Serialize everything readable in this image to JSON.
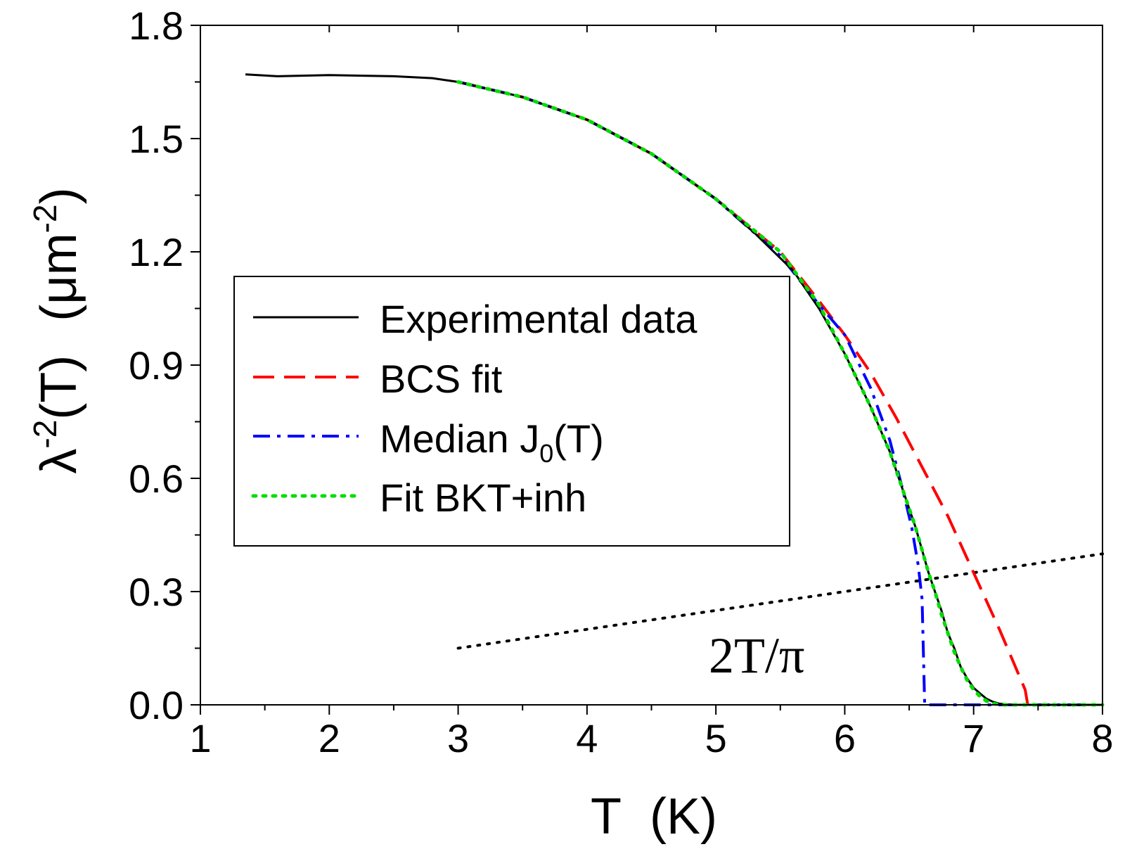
{
  "chart_data": {
    "type": "line",
    "title": "",
    "xlabel": "T (K)",
    "ylabel": "λ⁻²(T) (μm⁻²)",
    "xlabel_parts": {
      "symbol": "T",
      "unit": "(K)"
    },
    "ylabel_parts": {
      "symbol": "λ",
      "exponent": "-2",
      "arg": "(T)",
      "unit_open": "(μm",
      "unit_exponent": "-2",
      "unit_close": ")"
    },
    "xlim": [
      1,
      8
    ],
    "ylim": [
      0,
      1.8
    ],
    "x_ticks": [
      1,
      2,
      3,
      4,
      5,
      6,
      7,
      8
    ],
    "x_tick_labels": [
      "1",
      "2",
      "3",
      "4",
      "5",
      "6",
      "7",
      "8"
    ],
    "y_ticks": [
      0,
      0.3,
      0.6,
      0.9,
      1.2,
      1.5,
      1.8
    ],
    "y_tick_labels": [
      "0.0",
      "0.3",
      "0.6",
      "0.9",
      "1.2",
      "1.5",
      "1.8"
    ],
    "grid": false,
    "legend_position": "center-left",
    "annotation": {
      "text": "2T/π",
      "x": 4.9,
      "y": 0.11
    },
    "series": [
      {
        "name": "Experimental data",
        "color": "#000000",
        "style": "solid",
        "x": [
          1.35,
          1.6,
          2.0,
          2.5,
          2.8,
          3.0,
          3.5,
          4.0,
          4.5,
          5.0,
          5.3,
          5.6,
          5.8,
          6.0,
          6.2,
          6.35,
          6.45,
          6.55,
          6.6,
          6.65,
          6.7,
          6.75,
          6.8,
          6.85,
          6.9,
          6.95,
          7.0,
          7.05,
          7.1,
          7.15,
          7.2,
          7.3,
          7.5,
          8.0
        ],
        "y": [
          1.67,
          1.665,
          1.668,
          1.665,
          1.66,
          1.65,
          1.61,
          1.55,
          1.46,
          1.34,
          1.25,
          1.15,
          1.05,
          0.93,
          0.79,
          0.67,
          0.57,
          0.47,
          0.41,
          0.35,
          0.3,
          0.25,
          0.19,
          0.15,
          0.1,
          0.07,
          0.045,
          0.03,
          0.016,
          0.008,
          0.003,
          0.0,
          0.0,
          0.0
        ]
      },
      {
        "name": "BCS fit",
        "color": "#ff0000",
        "style": "dashed",
        "x": [
          3.0,
          3.5,
          4.0,
          4.5,
          5.0,
          5.5,
          5.8,
          6.0,
          6.2,
          6.4,
          6.6,
          6.8,
          7.0,
          7.2,
          7.3,
          7.4,
          7.42
        ],
        "y": [
          1.65,
          1.61,
          1.55,
          1.46,
          1.34,
          1.2,
          1.07,
          0.98,
          0.88,
          0.76,
          0.63,
          0.5,
          0.35,
          0.2,
          0.12,
          0.04,
          0.0
        ]
      },
      {
        "name": "Median J₀(T)",
        "legend_base": "Median J",
        "legend_sub": "0",
        "legend_tail": "(T)",
        "color": "#0000ff",
        "style": "dashdot",
        "x": [
          3.0,
          3.5,
          4.0,
          4.5,
          5.0,
          5.5,
          5.8,
          6.0,
          6.2,
          6.35,
          6.45,
          6.52,
          6.57,
          6.6,
          6.62,
          6.65,
          7.0,
          8.0
        ],
        "y": [
          1.65,
          1.61,
          1.55,
          1.46,
          1.34,
          1.19,
          1.06,
          0.98,
          0.84,
          0.7,
          0.57,
          0.47,
          0.37,
          0.28,
          0.0,
          0.0,
          0.0,
          0.0
        ]
      },
      {
        "name": "Fit BKT+inh",
        "color": "#00dd00",
        "style": "dotted",
        "x": [
          3.0,
          3.5,
          4.0,
          4.5,
          5.0,
          5.5,
          5.8,
          6.0,
          6.2,
          6.35,
          6.45,
          6.55,
          6.6,
          6.65,
          6.7,
          6.75,
          6.8,
          6.85,
          6.9,
          6.95,
          7.0,
          7.05,
          7.1,
          7.15,
          7.2,
          7.5,
          8.0
        ],
        "y": [
          1.65,
          1.61,
          1.55,
          1.46,
          1.34,
          1.2,
          1.06,
          0.93,
          0.79,
          0.67,
          0.57,
          0.47,
          0.41,
          0.35,
          0.3,
          0.24,
          0.19,
          0.14,
          0.1,
          0.065,
          0.04,
          0.022,
          0.01,
          0.004,
          0.0,
          0.0,
          0.0
        ]
      },
      {
        "name": "2T/π",
        "color": "#000000",
        "style": "fine-dotted",
        "in_legend": false,
        "x": [
          3.0,
          8.0
        ],
        "y": [
          0.15,
          0.4
        ]
      }
    ]
  }
}
